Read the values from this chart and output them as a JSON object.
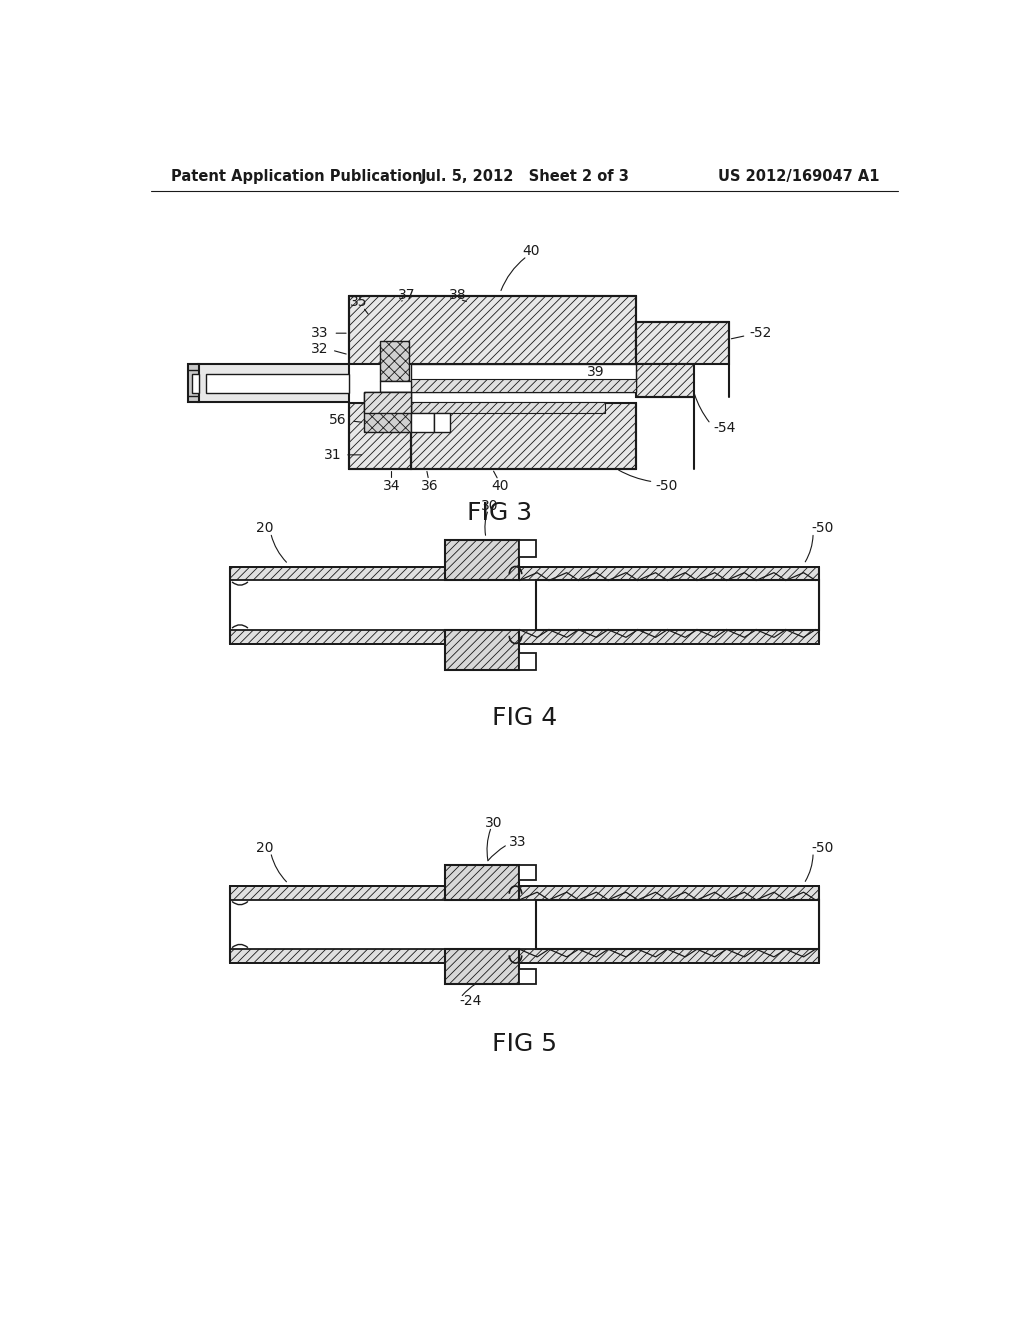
{
  "background_color": "#ffffff",
  "header_left": "Patent Application Publication",
  "header_center": "Jul. 5, 2012   Sheet 2 of 3",
  "header_right": "US 2012/169047 A1",
  "line_color": "#1a1a1a",
  "hatch_lw": 0.5,
  "fig3_title": "FIG 3",
  "fig4_title": "FIG 4",
  "fig5_title": "FIG 5"
}
